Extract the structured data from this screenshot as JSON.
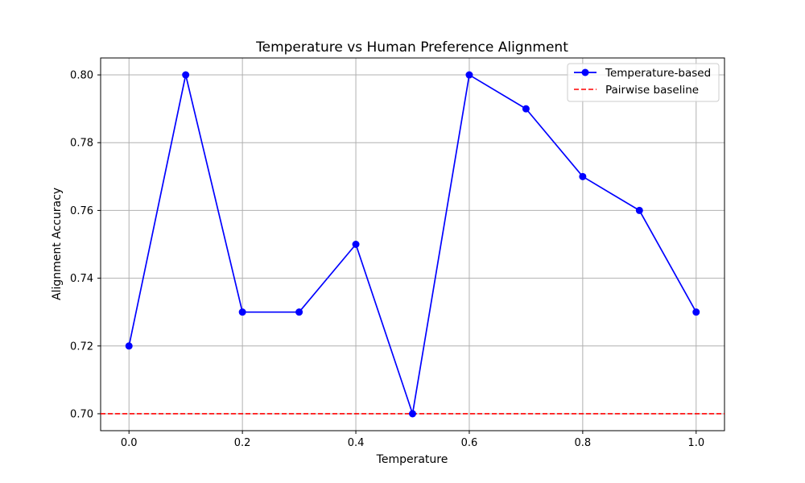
{
  "chart_data": {
    "type": "line",
    "title": "Temperature vs Human Preference Alignment",
    "xlabel": "Temperature",
    "ylabel": "Alignment Accuracy",
    "xlim": [
      -0.05,
      1.05
    ],
    "ylim": [
      0.695,
      0.805
    ],
    "xticks": [
      0.0,
      0.2,
      0.4,
      0.6,
      0.8,
      1.0
    ],
    "xtick_labels": [
      "0.0",
      "0.2",
      "0.4",
      "0.6",
      "0.8",
      "1.0"
    ],
    "yticks": [
      0.7,
      0.72,
      0.74,
      0.76,
      0.78,
      0.8
    ],
    "ytick_labels": [
      "0.70",
      "0.72",
      "0.74",
      "0.76",
      "0.78",
      "0.80"
    ],
    "grid": true,
    "legend_position": "top-right",
    "series": [
      {
        "name": "Temperature-based",
        "color": "#0000ff",
        "style": "solid",
        "marker": "circle",
        "x": [
          0.0,
          0.1,
          0.2,
          0.3,
          0.4,
          0.5,
          0.6,
          0.7,
          0.8,
          0.9,
          1.0
        ],
        "y": [
          0.72,
          0.8,
          0.73,
          0.73,
          0.75,
          0.7,
          0.8,
          0.79,
          0.77,
          0.76,
          0.73
        ]
      }
    ],
    "reference_lines": [
      {
        "name": "Pairwise baseline",
        "orientation": "horizontal",
        "y": 0.7,
        "color": "#ff0000",
        "style": "dashed"
      }
    ]
  }
}
